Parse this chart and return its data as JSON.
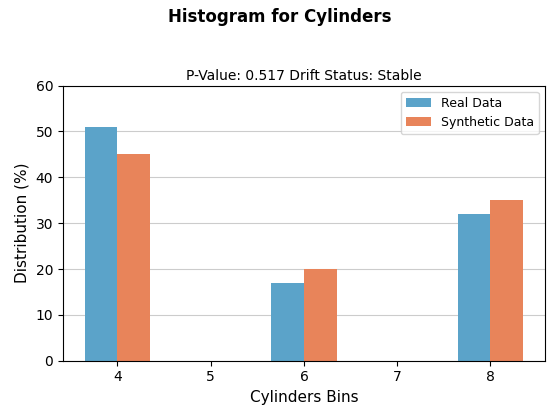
{
  "title": "Histogram for Cylinders",
  "subtitle": "P-Value: 0.517 Drift Status: Stable",
  "xlabel": "Cylinders Bins",
  "ylabel": "Distribution (%)",
  "categories": [
    4,
    5,
    6,
    7,
    8
  ],
  "real_data": [
    51,
    0,
    17,
    0,
    32
  ],
  "synthetic_data": [
    45,
    0,
    20,
    0,
    35
  ],
  "real_color": "#5BA3C9",
  "synthetic_color": "#E8845A",
  "ylim": [
    0,
    60
  ],
  "bar_width": 0.35,
  "legend_labels": [
    "Real Data",
    "Synthetic Data"
  ],
  "grid": true,
  "title_fontsize": 12,
  "subtitle_fontsize": 10,
  "axis_label_fontsize": 11,
  "tick_fontsize": 10
}
